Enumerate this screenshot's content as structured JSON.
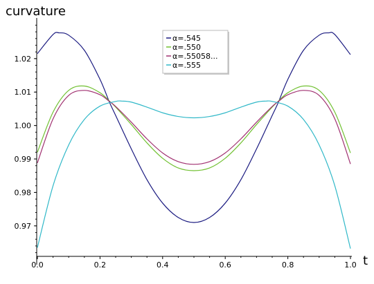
{
  "chart_data": {
    "type": "line",
    "ylabel": "curvature",
    "xlabel": "t",
    "xlim": [
      0.0,
      1.0
    ],
    "ylim": [
      0.9615,
      1.0305
    ],
    "xticks": [
      "0.0",
      "0.2",
      "0.4",
      "0.6",
      "0.8",
      "1.0"
    ],
    "yticks": [
      "0.97",
      "0.98",
      "0.99",
      "1.00",
      "1.01",
      "1.02"
    ],
    "grid": false,
    "legend_position": "top-center",
    "series": [
      {
        "name": "α=.545",
        "color": "#1a1a80",
        "x": [
          0.0,
          0.05,
          0.07,
          0.1,
          0.15,
          0.2,
          0.23,
          0.25,
          0.3,
          0.35,
          0.4,
          0.45,
          0.5,
          0.55,
          0.6,
          0.65,
          0.7,
          0.75,
          0.77,
          0.8,
          0.85,
          0.9,
          0.93,
          0.95,
          1.0
        ],
        "y": [
          1.0215,
          1.0272,
          1.0277,
          1.027,
          1.0225,
          1.0138,
          1.007,
          1.003,
          0.993,
          0.9838,
          0.9768,
          0.9725,
          0.971,
          0.9725,
          0.9768,
          0.9838,
          0.993,
          1.003,
          1.007,
          1.0138,
          1.0225,
          1.027,
          1.0277,
          1.0272,
          1.0212
        ]
      },
      {
        "name": "α=.550",
        "color": "#70c030",
        "x": [
          0.0,
          0.05,
          0.1,
          0.15,
          0.2,
          0.23,
          0.25,
          0.3,
          0.35,
          0.4,
          0.45,
          0.5,
          0.55,
          0.6,
          0.65,
          0.7,
          0.75,
          0.77,
          0.8,
          0.85,
          0.9,
          0.95,
          1.0
        ],
        "y": [
          0.992,
          1.004,
          1.0105,
          1.0118,
          1.0098,
          1.0073,
          1.0055,
          1.0003,
          0.9948,
          0.9902,
          0.9873,
          0.9865,
          0.9873,
          0.9902,
          0.9948,
          1.0003,
          1.0055,
          1.0073,
          1.0098,
          1.0118,
          1.0105,
          1.004,
          0.9918
        ]
      },
      {
        "name": "α=.55058...",
        "color": "#a03070",
        "x": [
          0.0,
          0.05,
          0.1,
          0.15,
          0.2,
          0.23,
          0.25,
          0.3,
          0.35,
          0.4,
          0.45,
          0.5,
          0.55,
          0.6,
          0.65,
          0.7,
          0.75,
          0.77,
          0.8,
          0.85,
          0.9,
          0.95,
          1.0
        ],
        "y": [
          0.9888,
          1.002,
          1.009,
          1.0105,
          1.0092,
          1.0072,
          1.0057,
          1.001,
          0.996,
          0.9918,
          0.9892,
          0.9884,
          0.9892,
          0.9918,
          0.996,
          1.001,
          1.0057,
          1.0072,
          1.0092,
          1.0105,
          1.009,
          1.002,
          0.9885
        ]
      },
      {
        "name": "α=.555",
        "color": "#30b8c8",
        "x": [
          0.0,
          0.05,
          0.1,
          0.15,
          0.2,
          0.25,
          0.27,
          0.3,
          0.35,
          0.4,
          0.45,
          0.5,
          0.55,
          0.6,
          0.65,
          0.7,
          0.73,
          0.75,
          0.8,
          0.85,
          0.9,
          0.95,
          1.0
        ],
        "y": [
          0.9635,
          0.982,
          0.9942,
          1.0018,
          1.0058,
          1.0072,
          1.0073,
          1.007,
          1.0055,
          1.0038,
          1.0027,
          1.0023,
          1.0027,
          1.0038,
          1.0055,
          1.007,
          1.0073,
          1.0072,
          1.0058,
          1.0018,
          0.9942,
          0.982,
          0.9632
        ]
      }
    ]
  }
}
